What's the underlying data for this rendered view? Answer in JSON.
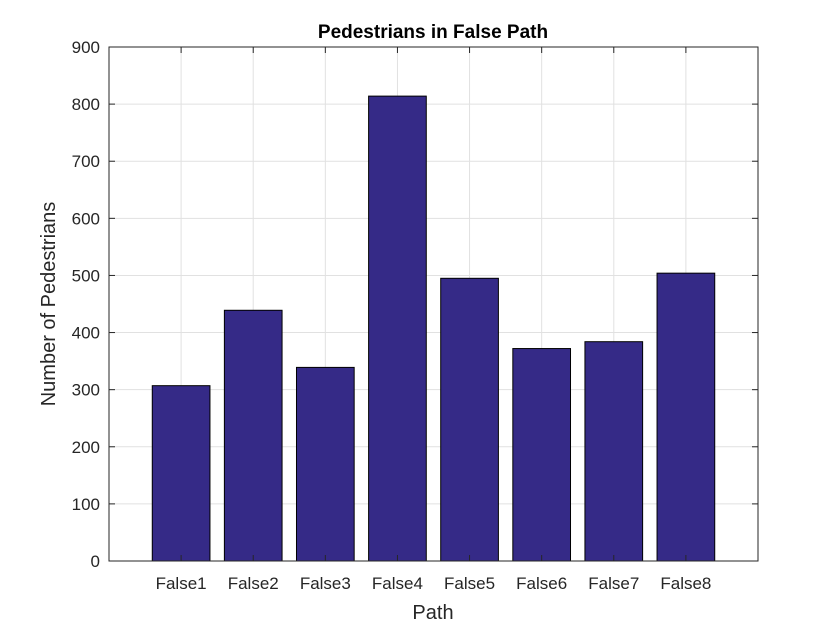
{
  "chart_data": {
    "type": "bar",
    "title": "Pedestrians in False Path",
    "xlabel": "Path",
    "ylabel": "Number of Pedestrians",
    "categories": [
      "False1",
      "False2",
      "False3",
      "False4",
      "False5",
      "False6",
      "False7",
      "False8"
    ],
    "values": [
      307,
      439,
      339,
      814,
      495,
      372,
      384,
      504
    ],
    "ylim": [
      0,
      900
    ],
    "yticks": [
      0,
      100,
      200,
      300,
      400,
      500,
      600,
      700,
      800,
      900
    ],
    "grid": true,
    "legend": "none",
    "bar_color": "#352a87"
  }
}
